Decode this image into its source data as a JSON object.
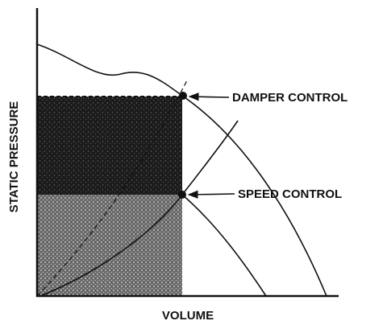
{
  "axes": {
    "y_label": "STATIC PRESSURE",
    "x_label": "VOLUME"
  },
  "annotations": [
    {
      "label": "DAMPER CONTROL"
    },
    {
      "label": "SPEED CONTROL"
    }
  ]
}
